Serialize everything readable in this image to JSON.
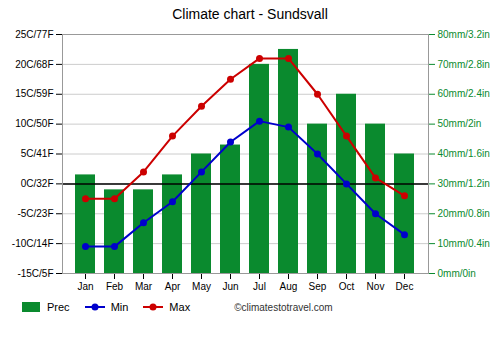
{
  "chart_data": {
    "type": "bar",
    "title": "Climate chart - Sundsvall",
    "categories": [
      "Jan",
      "Feb",
      "Mar",
      "Apr",
      "May",
      "Jun",
      "Jul",
      "Aug",
      "Sep",
      "Oct",
      "Nov",
      "Dec"
    ],
    "series": [
      {
        "name": "Prec",
        "type": "bar",
        "axis": "y2",
        "color": "#0a8a2e",
        "values": [
          33,
          28,
          28,
          33,
          40,
          43,
          70,
          75,
          50,
          60,
          50,
          40
        ]
      },
      {
        "name": "Min",
        "type": "line",
        "marker": "circle",
        "color": "#0000cc",
        "values": [
          -10.5,
          -10.5,
          -6.5,
          -3,
          2,
          7,
          10.5,
          9.5,
          5,
          0,
          -5,
          -8.5
        ]
      },
      {
        "name": "Max",
        "type": "line",
        "marker": "circle",
        "color": "#cc0000",
        "values": [
          -2.5,
          -2.5,
          2,
          8,
          13,
          17.5,
          21,
          21,
          15,
          8,
          1,
          -2
        ]
      }
    ],
    "ylim": [
      -15,
      25
    ],
    "yticks": [
      {
        "value": -15,
        "label": "-15C/5F"
      },
      {
        "value": -10,
        "label": "-10C/14F"
      },
      {
        "value": -5,
        "label": "-5C/23F"
      },
      {
        "value": 0,
        "label": "0C/32F"
      },
      {
        "value": 5,
        "label": "5C/41F"
      },
      {
        "value": 10,
        "label": "10C/50F"
      },
      {
        "value": 15,
        "label": "15C/59F"
      },
      {
        "value": 20,
        "label": "20C/68F"
      },
      {
        "value": 25,
        "label": "25C/77F"
      }
    ],
    "y2lim": [
      0,
      80
    ],
    "y2ticks": [
      {
        "value": 0,
        "label": "0mm/0in"
      },
      {
        "value": 10,
        "label": "10mm/0.4in"
      },
      {
        "value": 20,
        "label": "20mm/0.8in"
      },
      {
        "value": 30,
        "label": "30mm/1.2in"
      },
      {
        "value": 40,
        "label": "40mm/1.6in"
      },
      {
        "value": 50,
        "label": "50mm/2in"
      },
      {
        "value": 60,
        "label": "60mm/2.4in"
      },
      {
        "value": 70,
        "label": "70mm/2.8in"
      },
      {
        "value": 80,
        "label": "80mm/3.2in"
      }
    ],
    "zero_line": {
      "value": 0,
      "color": "#000000"
    },
    "grid": true,
    "legend": "lower left",
    "annotations": [
      "©climatestotravel.com"
    ]
  }
}
